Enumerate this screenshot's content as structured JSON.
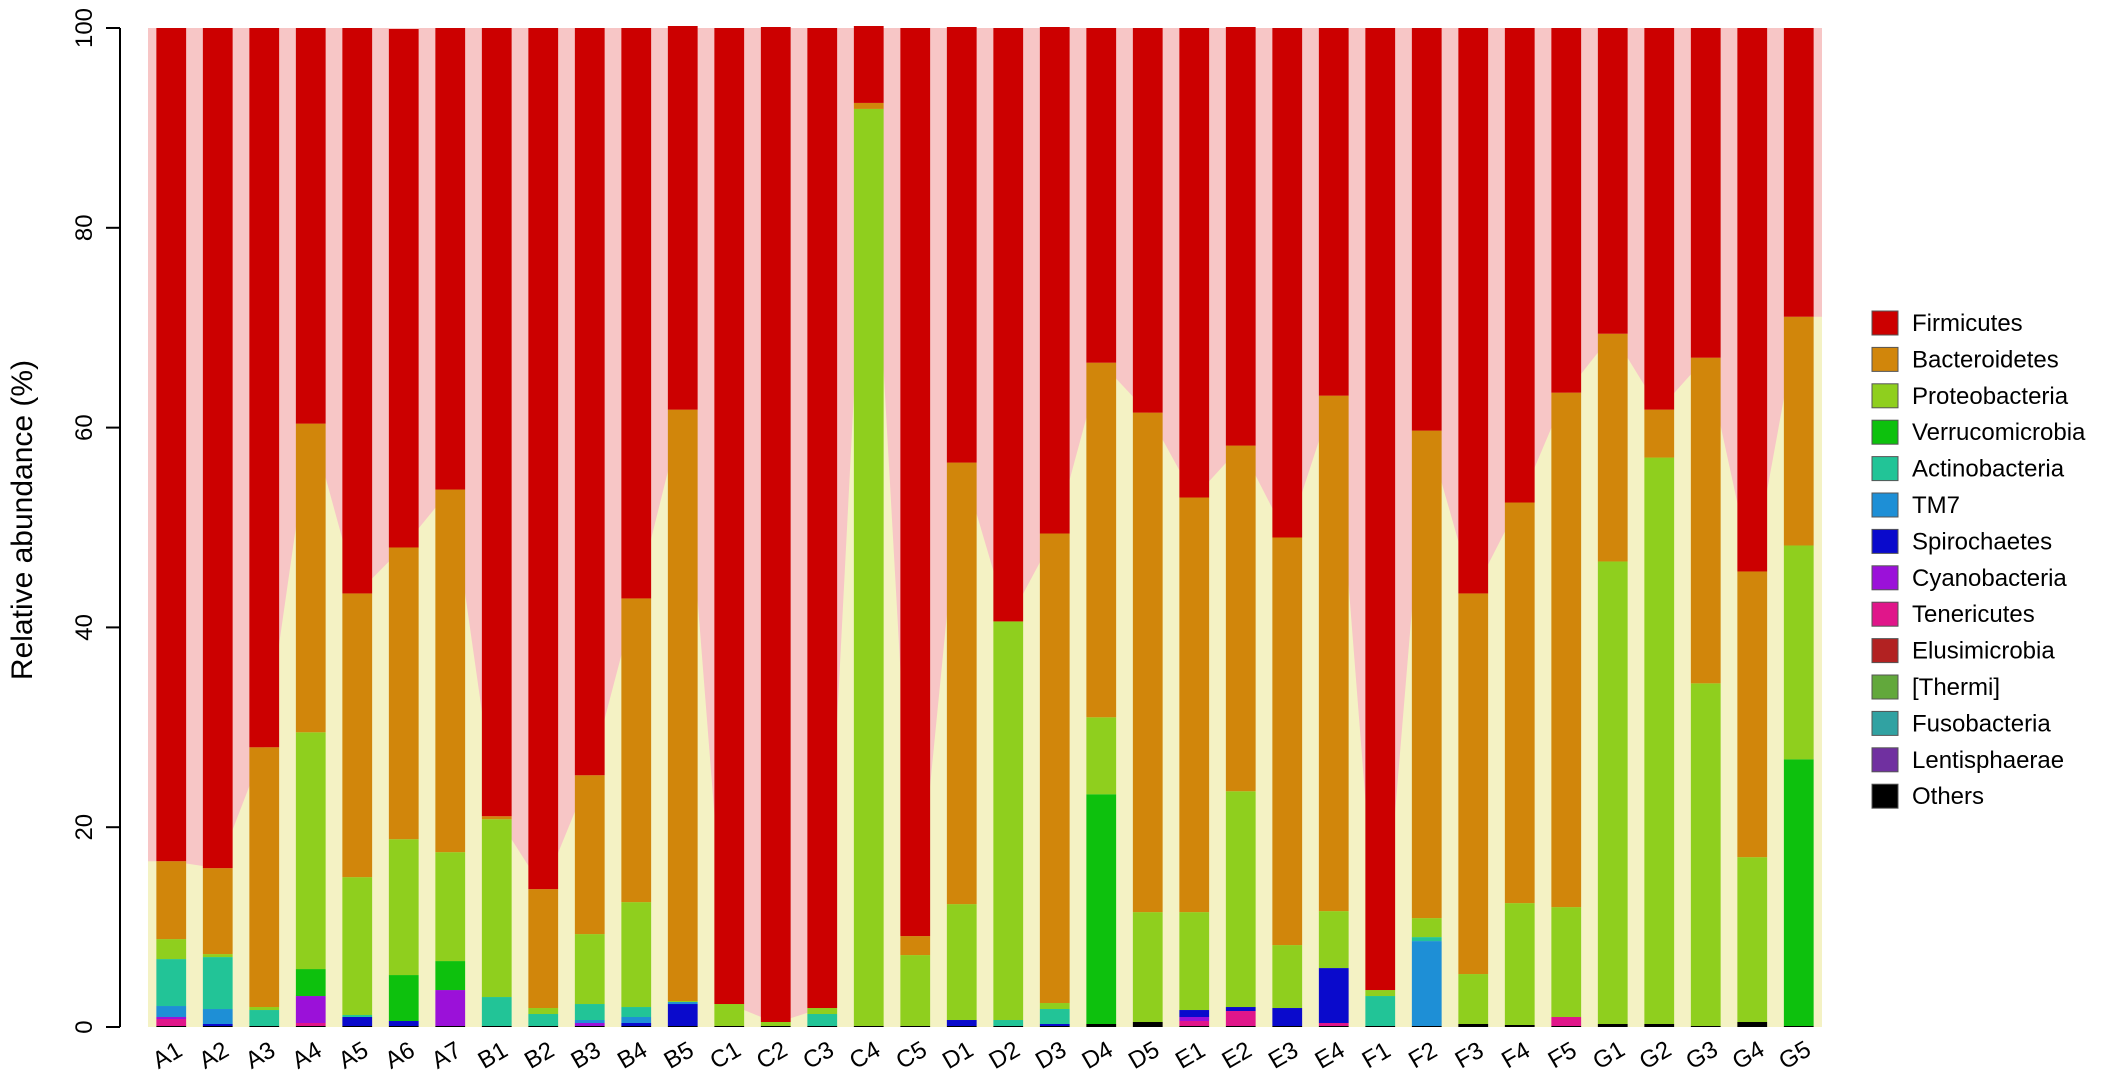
{
  "chart_data": {
    "type": "bar",
    "stacked": true,
    "title": "",
    "xlabel": "",
    "ylabel": "Relative abundance (%)",
    "ylim": [
      0,
      100
    ],
    "yticks": [
      0,
      20,
      40,
      60,
      80,
      100
    ],
    "grid": false,
    "legend_position": "right",
    "categories": [
      "A1",
      "A2",
      "A3",
      "A4",
      "A5",
      "A6",
      "A7",
      "B1",
      "B2",
      "B3",
      "B4",
      "B5",
      "C1",
      "C2",
      "C3",
      "C4",
      "C5",
      "D1",
      "D2",
      "D3",
      "D4",
      "D5",
      "E1",
      "E2",
      "E3",
      "E4",
      "F1",
      "F2",
      "F3",
      "F4",
      "F5",
      "G1",
      "G2",
      "G3",
      "G4",
      "G5"
    ],
    "series": [
      {
        "name": "Others",
        "color": "#000000",
        "values": [
          0.1,
          0.1,
          0.1,
          0.1,
          0.1,
          0.1,
          0.1,
          0.1,
          0.1,
          0.1,
          0.1,
          0.1,
          0.1,
          0.1,
          0.1,
          0.1,
          0.1,
          0.1,
          0.1,
          0.1,
          0.3,
          0.5,
          0.1,
          0.1,
          0.1,
          0.1,
          0.1,
          0.1,
          0.3,
          0.2,
          0.1,
          0.3,
          0.3,
          0.1,
          0.5,
          0.1
        ]
      },
      {
        "name": "Lentisphaerae",
        "color": "#7030a0",
        "values": [
          0,
          0,
          0,
          0,
          0,
          0,
          0,
          0,
          0,
          0,
          0,
          0,
          0,
          0,
          0,
          0,
          0,
          0,
          0,
          0,
          0,
          0,
          0,
          0,
          0,
          0,
          0,
          0,
          0,
          0,
          0,
          0,
          0,
          0,
          0,
          0
        ]
      },
      {
        "name": "Fusobacteria",
        "color": "#31a2a2",
        "values": [
          0,
          0,
          0,
          0,
          0,
          0,
          0,
          0,
          0,
          0,
          0,
          0,
          0,
          0,
          0,
          0,
          0,
          0,
          0,
          0,
          0,
          0,
          0,
          0,
          0,
          0,
          0,
          0,
          0,
          0,
          0,
          0,
          0,
          0,
          0,
          0
        ]
      },
      {
        "name": "[Thermi]",
        "color": "#62a83c",
        "values": [
          0,
          0,
          0,
          0,
          0,
          0,
          0,
          0,
          0,
          0,
          0,
          0,
          0,
          0,
          0,
          0,
          0,
          0,
          0,
          0,
          0,
          0,
          0,
          0,
          0,
          0,
          0,
          0,
          0,
          0,
          0,
          0,
          0,
          0,
          0,
          0
        ]
      },
      {
        "name": "Elusimicrobia",
        "color": "#b22222",
        "values": [
          0,
          0,
          0,
          0,
          0,
          0,
          0,
          0,
          0,
          0,
          0,
          0,
          0,
          0,
          0,
          0,
          0,
          0,
          0,
          0,
          0,
          0,
          0,
          0,
          0,
          0,
          0,
          0,
          0,
          0,
          0,
          0,
          0,
          0,
          0,
          0
        ]
      },
      {
        "name": "Tenericutes",
        "color": "#e0168a",
        "values": [
          0.7,
          0,
          0,
          0.3,
          0,
          0,
          0,
          0,
          0,
          0,
          0,
          0,
          0,
          0,
          0,
          0,
          0,
          0,
          0,
          0,
          0,
          0,
          0.5,
          1.5,
          0,
          0.3,
          0,
          0,
          0,
          0,
          0.9,
          0,
          0,
          0,
          0,
          0
        ]
      },
      {
        "name": "Cyanobacteria",
        "color": "#9b11d9",
        "values": [
          0.2,
          0,
          0,
          2.7,
          0,
          0,
          3.6,
          0,
          0,
          0.3,
          0,
          0,
          0,
          0,
          0,
          0,
          0,
          0,
          0,
          0,
          0,
          0,
          0.4,
          0,
          0,
          0,
          0,
          0,
          0,
          0,
          0,
          0,
          0,
          0,
          0,
          0
        ]
      },
      {
        "name": "Spirochaetes",
        "color": "#0a0acc",
        "values": [
          0,
          0.2,
          0,
          0,
          0.9,
          0.5,
          0,
          0,
          0,
          0,
          0.3,
          2.2,
          0,
          0,
          0,
          0,
          0,
          0.6,
          0,
          0.2,
          0,
          0,
          0.7,
          0.4,
          1.8,
          5.5,
          0,
          0,
          0,
          0,
          0,
          0,
          0,
          0,
          0,
          0
        ]
      },
      {
        "name": "TM7",
        "color": "#1e8fd6",
        "values": [
          1.1,
          1.5,
          0,
          0,
          0,
          0,
          0,
          0,
          0,
          0.3,
          0.6,
          0.2,
          0,
          0,
          0,
          0,
          0,
          0,
          0,
          0,
          0,
          0,
          0,
          0,
          0,
          0,
          0,
          8.5,
          0,
          0,
          0,
          0,
          0,
          0,
          0,
          0
        ]
      },
      {
        "name": "Actinobacteria",
        "color": "#22c497",
        "values": [
          4.7,
          5.2,
          1.6,
          0,
          0.2,
          0,
          0,
          2.9,
          1.2,
          1.6,
          1.0,
          0,
          0,
          0,
          1.2,
          0,
          0,
          0,
          0.6,
          1.5,
          0,
          0,
          0,
          0,
          0,
          0,
          3.0,
          0.4,
          0,
          0,
          0,
          0,
          0,
          0,
          0,
          0
        ]
      },
      {
        "name": "Verrucomicrobia",
        "color": "#0dc10d",
        "values": [
          0,
          0,
          0,
          2.7,
          0,
          4.6,
          2.9,
          0,
          0,
          0,
          0,
          0,
          0,
          0,
          0,
          0,
          0,
          0,
          0,
          0,
          23.0,
          0,
          0,
          0,
          0,
          0,
          0,
          0,
          0,
          0,
          0,
          0,
          0,
          0,
          0,
          26.7
        ]
      },
      {
        "name": "Proteobacteria",
        "color": "#8fcf1e",
        "values": [
          2.0,
          0.3,
          0.3,
          23.7,
          13.8,
          13.6,
          10.9,
          17.8,
          0.6,
          7.0,
          10.5,
          0.1,
          2.2,
          0.4,
          0.6,
          91.8,
          7.1,
          11.6,
          39.9,
          0.6,
          7.7,
          11.0,
          9.8,
          21.6,
          6.3,
          5.7,
          0.6,
          1.9,
          5.0,
          12.2,
          11.0,
          46.3,
          56.7,
          34.3,
          16.5,
          21.4
        ]
      },
      {
        "name": "Bacteroidetes",
        "color": "#d1860b",
        "values": [
          7.8,
          8.6,
          26.0,
          30.9,
          28.4,
          29.2,
          36.3,
          0.3,
          11.9,
          15.9,
          30.4,
          59.2,
          0,
          0,
          0,
          0.6,
          1.9,
          44.2,
          0,
          47.0,
          35.5,
          50.0,
          41.5,
          34.6,
          40.8,
          51.6,
          0,
          48.8,
          38.1,
          40.1,
          51.5,
          22.8,
          4.8,
          32.6,
          28.6,
          22.9
        ]
      },
      {
        "name": "Firmicutes",
        "color": "#cc0000",
        "values": [
          83.4,
          84.1,
          72.0,
          39.6,
          56.6,
          51.9,
          46.2,
          78.9,
          86.2,
          74.8,
          57.1,
          38.4,
          97.7,
          99.6,
          98.1,
          7.7,
          90.9,
          43.6,
          59.4,
          50.7,
          33.5,
          38.5,
          47.0,
          41.9,
          51.0,
          36.8,
          96.3,
          40.3,
          56.6,
          47.5,
          36.5,
          30.6,
          38.2,
          33.0,
          54.4,
          28.9
        ]
      }
    ]
  }
}
